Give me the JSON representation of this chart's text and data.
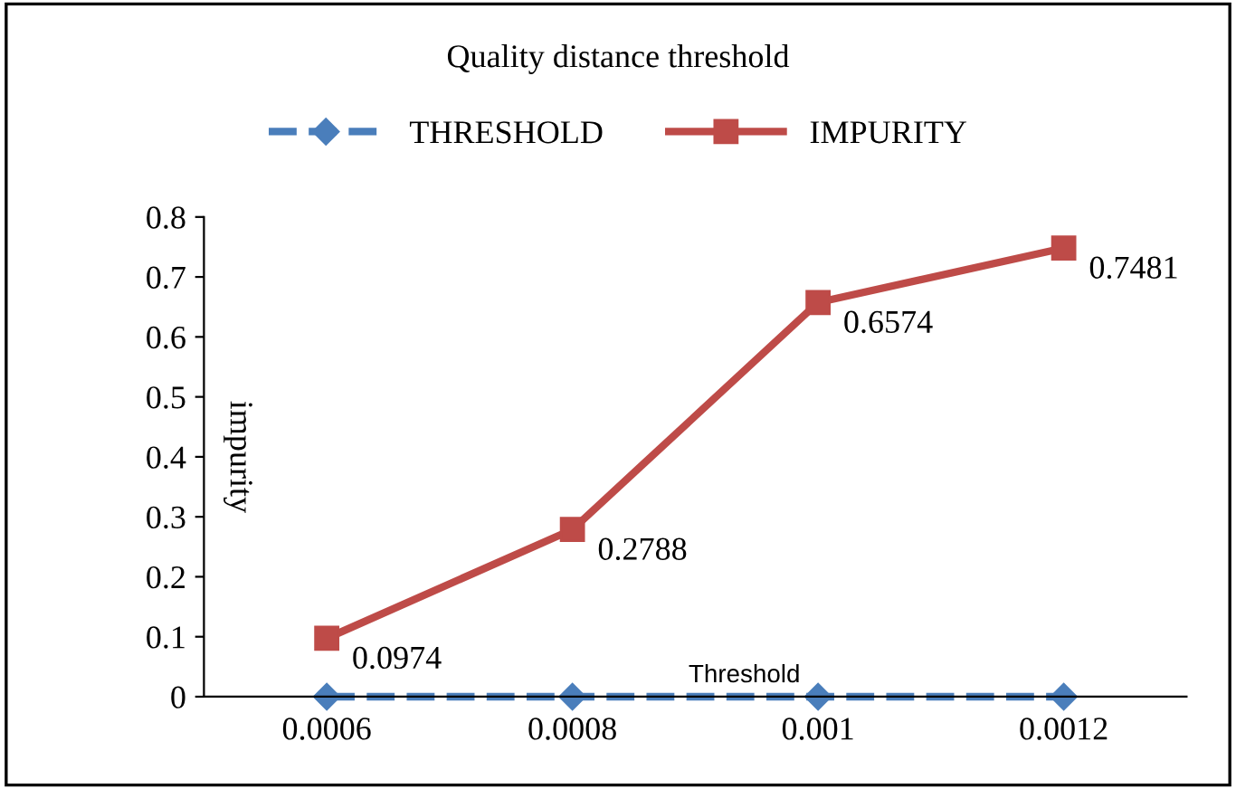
{
  "chart_data": {
    "type": "line",
    "title": "Quality distance threshold",
    "xlabel": "Threshold",
    "ylabel": "impurity",
    "categories": [
      "0.0006",
      "0.0008",
      "0.001",
      "0.0012"
    ],
    "series": [
      {
        "name": "THRESHOLD",
        "color": "#4a7ebb",
        "values": [
          0,
          0,
          0,
          0
        ],
        "marker": "diamond",
        "line_style": "dashed"
      },
      {
        "name": "IMPURITY",
        "color": "#be4b48",
        "values": [
          0.0974,
          0.2788,
          0.6574,
          0.7481
        ],
        "marker": "square",
        "line_style": "solid",
        "value_labels": [
          "0.0974",
          "0.2788",
          "0.6574",
          "0.7481"
        ]
      }
    ],
    "ylim": [
      0,
      0.8
    ],
    "yticks": [
      0,
      0.1,
      0.2,
      0.3,
      0.4,
      0.5,
      0.6,
      0.7,
      0.8
    ],
    "grid": false,
    "legend": "top"
  }
}
